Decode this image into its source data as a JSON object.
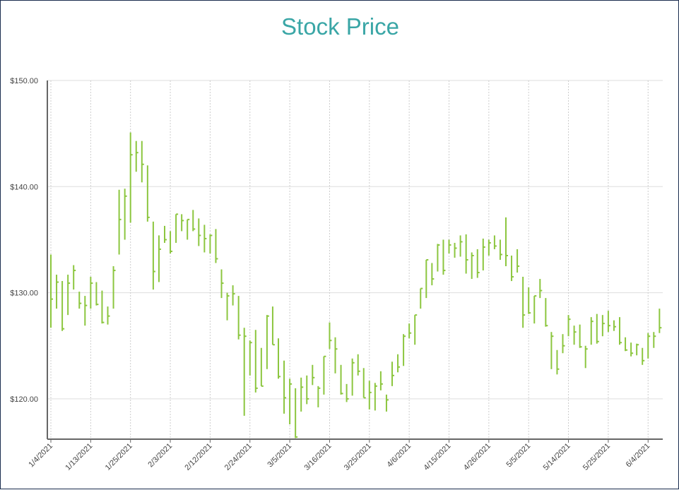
{
  "chart_data": {
    "type": "hlc",
    "title": "Stock Price",
    "xlabel": "",
    "ylabel": "",
    "ylim": [
      116.2,
      150
    ],
    "y_ticks": [
      120,
      130,
      140,
      150
    ],
    "y_tick_labels": [
      "$120.00",
      "$130.00",
      "$140.00",
      "$150.00"
    ],
    "x_tick_labels": [
      "1/4/2021",
      "1/13/2021",
      "1/25/2021",
      "2/3/2021",
      "2/12/2021",
      "2/24/2021",
      "3/5/2021",
      "3/16/2021",
      "3/25/2021",
      "4/6/2021",
      "4/15/2021",
      "4/26/2021",
      "5/5/2021",
      "5/14/2021",
      "5/25/2021",
      "6/4/2021"
    ],
    "x_tick_every": 7,
    "grid": true,
    "colors": {
      "bar": "#8cc63f",
      "title": "#3aa6a6",
      "grid": "#dddddd",
      "axis": "#666666"
    },
    "dates": [
      "1/4",
      "1/5",
      "1/6",
      "1/7",
      "1/8",
      "1/11",
      "1/12",
      "1/13",
      "1/14",
      "1/15",
      "1/19",
      "1/20",
      "1/21",
      "1/22",
      "1/25",
      "1/26",
      "1/27",
      "1/28",
      "1/29",
      "2/1",
      "2/2",
      "2/3",
      "2/4",
      "2/5",
      "2/8",
      "2/9",
      "2/10",
      "2/11",
      "2/12",
      "2/16",
      "2/17",
      "2/18",
      "2/19",
      "2/22",
      "2/23",
      "2/24",
      "2/25",
      "2/26",
      "3/1",
      "3/2",
      "3/3",
      "3/4",
      "3/5",
      "3/8",
      "3/9",
      "3/10",
      "3/11",
      "3/12",
      "3/15",
      "3/16",
      "3/17",
      "3/18",
      "3/19",
      "3/22",
      "3/23",
      "3/24",
      "3/25",
      "3/26",
      "3/29",
      "3/30",
      "3/31",
      "4/1",
      "4/5",
      "4/6",
      "4/7",
      "4/8",
      "4/9",
      "4/12",
      "4/13",
      "4/14",
      "4/15",
      "4/16",
      "4/19",
      "4/20",
      "4/21",
      "4/22",
      "4/23",
      "4/26",
      "4/27",
      "4/28",
      "4/29",
      "4/30",
      "5/3",
      "5/4",
      "5/5",
      "5/6",
      "5/7",
      "5/10",
      "5/11",
      "5/12",
      "5/13",
      "5/14",
      "5/17",
      "5/18",
      "5/19",
      "5/20",
      "5/21",
      "5/24",
      "5/25",
      "5/26",
      "5/27",
      "5/28",
      "6/1",
      "6/2",
      "6/3",
      "6/4",
      "6/7",
      "6/8"
    ],
    "high": [
      133.6,
      131.7,
      131.1,
      131.7,
      132.6,
      130.1,
      129.7,
      131.5,
      131.0,
      130.2,
      128.7,
      132.5,
      139.7,
      139.8,
      145.1,
      144.3,
      144.3,
      142.0,
      136.7,
      135.4,
      136.3,
      135.8,
      137.4,
      137.4,
      136.9,
      137.8,
      137.0,
      136.4,
      135.5,
      136.0,
      132.2,
      130.0,
      130.7,
      129.7,
      126.7,
      125.5,
      126.5,
      124.8,
      127.9,
      128.7,
      125.7,
      123.6,
      121.9,
      121.0,
      122.0,
      122.2,
      123.2,
      121.2,
      124.0,
      127.2,
      125.8,
      123.2,
      121.4,
      123.8,
      124.2,
      122.9,
      121.7,
      121.5,
      122.6,
      120.4,
      123.5,
      124.2,
      126.1,
      127.1,
      127.9,
      130.4,
      133.1,
      132.8,
      134.6,
      135.0,
      135.0,
      134.7,
      135.4,
      135.5,
      133.8,
      134.1,
      135.1,
      135.0,
      135.4,
      135.0,
      137.1,
      133.5,
      134.1,
      131.5,
      130.5,
      129.7,
      131.3,
      129.5,
      126.3,
      124.6,
      126.1,
      127.9,
      126.9,
      127.0,
      125.0,
      127.7,
      128.0,
      127.9,
      128.3,
      127.4,
      127.7,
      125.8,
      125.3,
      125.2,
      124.8,
      126.2,
      126.3,
      128.5
    ],
    "low": [
      126.7,
      128.5,
      126.4,
      127.9,
      130.3,
      128.5,
      126.9,
      128.5,
      128.8,
      127.1,
      127.0,
      128.5,
      133.6,
      135.0,
      136.6,
      141.4,
      140.4,
      136.7,
      130.3,
      131.0,
      134.7,
      133.7,
      134.7,
      135.8,
      135.0,
      135.8,
      134.4,
      133.8,
      133.7,
      132.8,
      129.5,
      127.4,
      128.8,
      125.6,
      118.4,
      122.2,
      120.6,
      121.2,
      122.8,
      125.1,
      121.9,
      118.6,
      117.6,
      116.3,
      118.8,
      119.5,
      121.3,
      119.2,
      120.4,
      124.7,
      122.4,
      120.4,
      119.7,
      120.3,
      122.2,
      120.1,
      119.0,
      118.9,
      120.8,
      118.8,
      121.2,
      122.5,
      123.1,
      125.7,
      125.1,
      128.5,
      129.5,
      130.7,
      132.0,
      131.7,
      133.7,
      133.3,
      133.4,
      131.8,
      131.3,
      131.4,
      132.1,
      133.5,
      134.1,
      133.1,
      132.5,
      131.1,
      131.9,
      126.7,
      128.0,
      127.1,
      129.5,
      126.8,
      122.8,
      122.3,
      124.3,
      125.9,
      125.1,
      124.8,
      122.9,
      125.1,
      125.2,
      125.9,
      126.3,
      126.4,
      125.1,
      124.5,
      124.0,
      124.1,
      123.2,
      123.8,
      124.8,
      126.2
    ],
    "close": [
      129.4,
      131.0,
      126.6,
      130.9,
      132.1,
      129.0,
      128.8,
      130.9,
      128.9,
      127.2,
      127.8,
      132.1,
      136.9,
      139.1,
      143.0,
      143.2,
      142.1,
      137.1,
      132.0,
      134.1,
      135.0,
      133.9,
      137.4,
      136.8,
      136.9,
      136.0,
      135.4,
      135.1,
      135.4,
      133.2,
      130.9,
      129.7,
      129.9,
      126.0,
      125.9,
      125.3,
      121.0,
      121.2,
      127.8,
      125.1,
      122.1,
      120.1,
      121.4,
      116.4,
      121.1,
      120.0,
      122.0,
      121.0,
      124.0,
      125.5,
      124.7,
      120.5,
      120.0,
      123.4,
      122.6,
      120.1,
      120.6,
      121.2,
      121.4,
      119.9,
      122.2,
      123.0,
      125.9,
      126.2,
      127.9,
      130.4,
      133.1,
      131.3,
      134.5,
      132.1,
      134.5,
      134.2,
      134.8,
      133.1,
      133.5,
      131.9,
      134.3,
      134.7,
      134.4,
      133.6,
      133.5,
      131.5,
      132.5,
      127.9,
      128.1,
      129.7,
      130.2,
      126.9,
      125.9,
      122.8,
      125.0,
      127.5,
      126.3,
      124.9,
      124.7,
      127.3,
      125.4,
      127.1,
      126.9,
      126.8,
      125.3,
      124.6,
      124.3,
      125.1,
      123.6,
      125.9,
      125.9,
      126.7
    ]
  }
}
